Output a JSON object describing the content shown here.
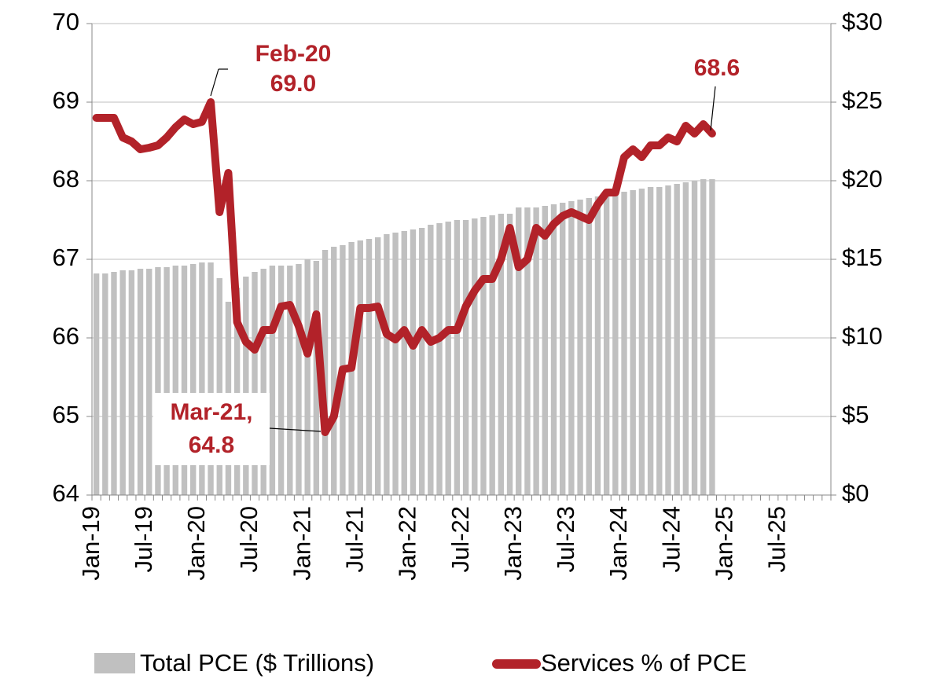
{
  "chart_data": {
    "type": "bar-line",
    "categories": [
      "Jan-19",
      null,
      null,
      null,
      null,
      null,
      "Jul-19",
      null,
      null,
      null,
      null,
      null,
      "Jan-20",
      null,
      null,
      null,
      null,
      null,
      "Jul-20",
      null,
      null,
      null,
      null,
      null,
      "Jan-21",
      null,
      null,
      null,
      null,
      null,
      "Jul-21",
      null,
      null,
      null,
      null,
      null,
      "Jan-22",
      null,
      null,
      null,
      null,
      null,
      "Jul-22",
      null,
      null,
      null,
      null,
      null,
      "Jan-23",
      null,
      null,
      null,
      null,
      null,
      "Jul-23",
      null,
      null,
      null,
      null,
      null,
      "Jan-24",
      null,
      null,
      null,
      null,
      null,
      "Jul-24",
      null,
      null,
      null,
      null,
      null,
      "Jan-25",
      null,
      null,
      null,
      null,
      null,
      "Jul-25",
      null,
      null,
      null,
      null,
      null
    ],
    "series": [
      {
        "name": "Total PCE ($ Trillions)",
        "type": "bar",
        "axis": "y2",
        "color": "#c0c0c0",
        "values": [
          14.1,
          14.1,
          14.2,
          14.3,
          14.3,
          14.4,
          14.4,
          14.5,
          14.5,
          14.6,
          14.6,
          14.7,
          14.8,
          14.8,
          13.8,
          12.3,
          13.2,
          13.9,
          14.2,
          14.4,
          14.6,
          14.6,
          14.6,
          14.7,
          15.0,
          14.9,
          15.6,
          15.8,
          15.9,
          16.1,
          16.2,
          16.3,
          16.4,
          16.6,
          16.7,
          16.8,
          16.9,
          17.0,
          17.2,
          17.3,
          17.4,
          17.5,
          17.5,
          17.6,
          17.7,
          17.8,
          17.9,
          17.9,
          18.3,
          18.3,
          18.3,
          18.4,
          18.5,
          18.6,
          18.7,
          18.8,
          18.9,
          19.0,
          19.1,
          19.2,
          19.3,
          19.4,
          19.5,
          19.6,
          19.6,
          19.7,
          19.8,
          19.9,
          20.0,
          20.1,
          20.1,
          null,
          null,
          null,
          null,
          null,
          null,
          null,
          null,
          null,
          null,
          null,
          null,
          null
        ]
      },
      {
        "name": "Services % of PCE",
        "type": "line",
        "color": "#b22229",
        "values": [
          68.8,
          68.8,
          68.8,
          68.55,
          68.5,
          68.4,
          68.42,
          68.45,
          68.55,
          68.68,
          68.78,
          68.72,
          68.75,
          69.0,
          67.6,
          68.1,
          66.2,
          65.95,
          65.85,
          66.1,
          66.1,
          66.4,
          66.42,
          66.15,
          65.8,
          66.3,
          64.8,
          65.0,
          65.6,
          65.62,
          66.38,
          66.38,
          66.4,
          66.05,
          65.98,
          66.1,
          65.9,
          66.1,
          65.95,
          66.0,
          66.1,
          66.1,
          66.4,
          66.6,
          66.75,
          66.75,
          67.0,
          67.4,
          66.9,
          67.0,
          67.4,
          67.3,
          67.45,
          67.55,
          67.6,
          67.55,
          67.5,
          67.7,
          67.85,
          67.85,
          68.3,
          68.4,
          68.3,
          68.45,
          68.45,
          68.55,
          68.5,
          68.7,
          68.6,
          68.72,
          68.6,
          null,
          null,
          null,
          null,
          null,
          null,
          null,
          null,
          null,
          null,
          null,
          null,
          null
        ]
      }
    ],
    "ylim": [
      64,
      70
    ],
    "yticks": [
      64,
      65,
      66,
      67,
      68,
      69,
      70
    ],
    "y2lim": [
      0,
      30
    ],
    "y2ticks": [
      {
        "value": 0,
        "label": "$0"
      },
      {
        "value": 5,
        "label": "$5"
      },
      {
        "value": 10,
        "label": "$10"
      },
      {
        "value": 15,
        "label": "$15"
      },
      {
        "value": 20,
        "label": "$20"
      },
      {
        "value": 25,
        "label": "$25"
      },
      {
        "value": 30,
        "label": "$30"
      }
    ],
    "grid": true,
    "legend": "bottom",
    "annotations": [
      [
        "Feb-20",
        "69.0"
      ],
      [
        "Mar-21,",
        "64.8"
      ],
      [
        "68.6"
      ]
    ]
  }
}
